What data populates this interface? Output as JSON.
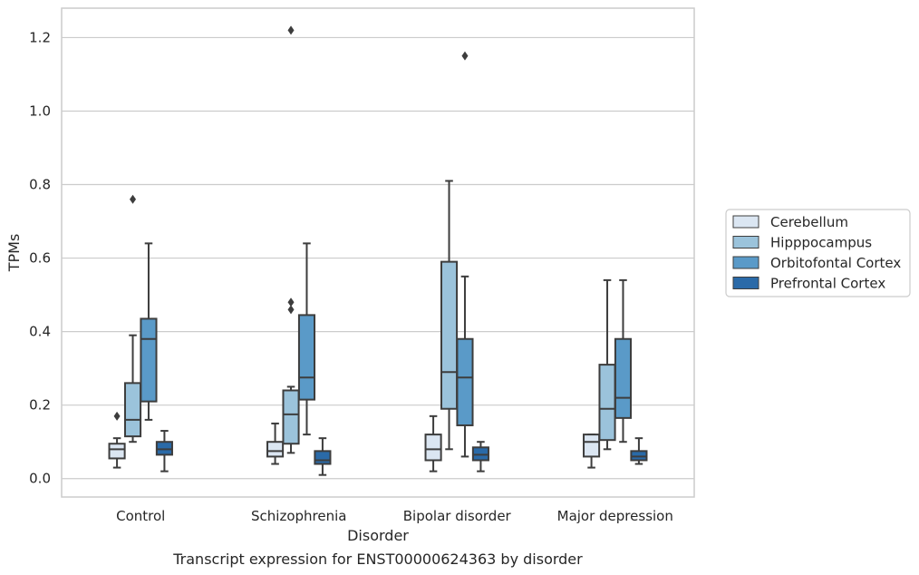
{
  "chart_data": {
    "type": "box",
    "caption": "Transcript expression for ENST00000624363 by disorder",
    "xlabel": "Disorder",
    "ylabel": "TPMs",
    "ylim": [
      -0.05,
      1.28
    ],
    "yticks": [
      "0.0",
      "0.2",
      "0.4",
      "0.6",
      "0.8",
      "1.0",
      "1.2"
    ],
    "grid": "horizontal",
    "legend_position": "right",
    "categories": [
      "Control",
      "Schizophrenia",
      "Bipolar disorder",
      "Major depression"
    ],
    "series": [
      {
        "name": "Cerebellum",
        "color": "#dbe6f2",
        "boxes": [
          {
            "whislo": 0.03,
            "q1": 0.055,
            "med": 0.08,
            "q3": 0.095,
            "whishi": 0.11,
            "fliers": [
              0.17
            ]
          },
          {
            "whislo": 0.04,
            "q1": 0.06,
            "med": 0.075,
            "q3": 0.1,
            "whishi": 0.15,
            "fliers": []
          },
          {
            "whislo": 0.02,
            "q1": 0.05,
            "med": 0.08,
            "q3": 0.12,
            "whishi": 0.17,
            "fliers": []
          },
          {
            "whislo": 0.03,
            "q1": 0.06,
            "med": 0.1,
            "q3": 0.12,
            "whishi": 0.12,
            "fliers": []
          }
        ]
      },
      {
        "name": "Hipppocampus",
        "color": "#9bc3db",
        "boxes": [
          {
            "whislo": 0.1,
            "q1": 0.115,
            "med": 0.16,
            "q3": 0.26,
            "whishi": 0.39,
            "fliers": [
              0.76
            ]
          },
          {
            "whislo": 0.07,
            "q1": 0.095,
            "med": 0.175,
            "q3": 0.24,
            "whishi": 0.25,
            "fliers": [
              0.46,
              0.48,
              1.22
            ]
          },
          {
            "whislo": 0.08,
            "q1": 0.19,
            "med": 0.29,
            "q3": 0.59,
            "whishi": 0.81,
            "fliers": []
          },
          {
            "whislo": 0.08,
            "q1": 0.105,
            "med": 0.19,
            "q3": 0.31,
            "whishi": 0.54,
            "fliers": []
          }
        ]
      },
      {
        "name": "Orbitofontal Cortex",
        "color": "#5a9ac8",
        "boxes": [
          {
            "whislo": 0.16,
            "q1": 0.21,
            "med": 0.38,
            "q3": 0.435,
            "whishi": 0.64,
            "fliers": []
          },
          {
            "whislo": 0.12,
            "q1": 0.215,
            "med": 0.275,
            "q3": 0.445,
            "whishi": 0.64,
            "fliers": []
          },
          {
            "whislo": 0.06,
            "q1": 0.145,
            "med": 0.275,
            "q3": 0.38,
            "whishi": 0.55,
            "fliers": [
              1.15
            ]
          },
          {
            "whislo": 0.1,
            "q1": 0.165,
            "med": 0.22,
            "q3": 0.38,
            "whishi": 0.54,
            "fliers": []
          }
        ]
      },
      {
        "name": "Prefrontal Cortex",
        "color": "#2a6aa8",
        "boxes": [
          {
            "whislo": 0.02,
            "q1": 0.065,
            "med": 0.08,
            "q3": 0.1,
            "whishi": 0.13,
            "fliers": []
          },
          {
            "whislo": 0.01,
            "q1": 0.04,
            "med": 0.05,
            "q3": 0.075,
            "whishi": 0.11,
            "fliers": []
          },
          {
            "whislo": 0.02,
            "q1": 0.05,
            "med": 0.065,
            "q3": 0.085,
            "whishi": 0.1,
            "fliers": []
          },
          {
            "whislo": 0.04,
            "q1": 0.05,
            "med": 0.06,
            "q3": 0.075,
            "whishi": 0.11,
            "fliers": []
          }
        ]
      }
    ]
  }
}
